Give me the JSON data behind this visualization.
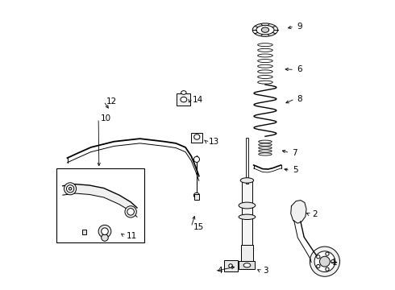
{
  "bg_color": "#ffffff",
  "line_color": "#000000",
  "label_color": "#000000",
  "fig_width": 4.9,
  "fig_height": 3.6,
  "dpi": 100
}
